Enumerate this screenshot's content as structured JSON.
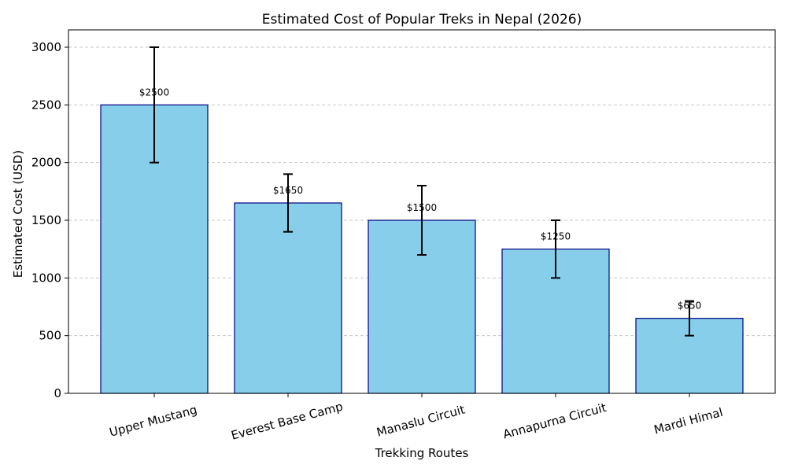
{
  "chart_data": {
    "type": "bar",
    "title": "Estimated Cost of Popular Treks in Nepal (2026)",
    "xlabel": "Trekking Routes",
    "ylabel": "Estimated Cost (USD)",
    "categories": [
      "Upper Mustang",
      "Everest Base Camp",
      "Manaslu Circuit",
      "Annapurna Circuit",
      "Mardi Himal"
    ],
    "values": [
      2500,
      1650,
      1500,
      1250,
      650
    ],
    "error_low": [
      2000,
      1400,
      1200,
      1000,
      500
    ],
    "error_high": [
      3000,
      1900,
      1800,
      1500,
      800
    ],
    "data_labels": [
      "$2500",
      "$1650",
      "$1500",
      "$1250",
      "$650"
    ],
    "yticks": [
      0,
      500,
      1000,
      1500,
      2000,
      2500,
      3000
    ],
    "ylim": [
      0,
      3150
    ],
    "grid": "y-dashed",
    "colors": {
      "bar_fill": "#87CEEB",
      "bar_edge": "#000080",
      "error_bar": "#000000",
      "grid": "#c7c7c7"
    }
  }
}
